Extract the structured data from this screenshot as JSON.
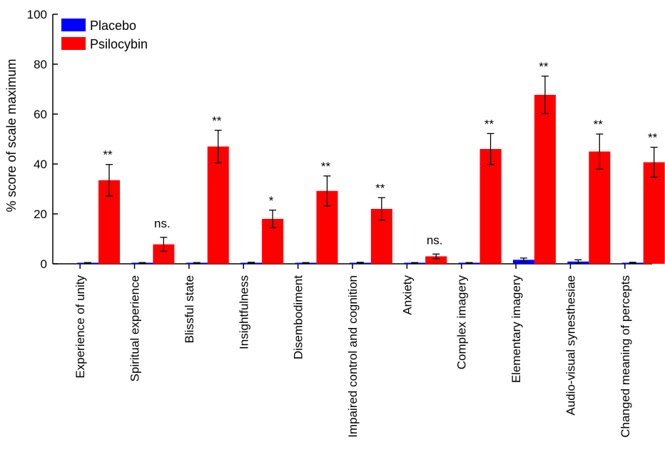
{
  "chart_data": {
    "type": "bar",
    "ylabel": "% score of scale maximum",
    "ylim": [
      0,
      100
    ],
    "yticks": [
      0,
      20,
      40,
      60,
      80,
      100
    ],
    "legend_position": "top-left",
    "categories": [
      "Experience of unity",
      "Spiritual experience",
      "Blissful state",
      "Insightfulness",
      "Disembodiment",
      "Impaired control and cognition",
      "Anxiety",
      "Complex imagery",
      "Elementary imagery",
      "Audio-visual synesthesiae",
      "Changed meaning of percepts"
    ],
    "series": [
      {
        "name": "Placebo",
        "color": "#0000ff",
        "values": [
          0.3,
          0.3,
          0.3,
          0.4,
          0.3,
          0.4,
          0.3,
          0.3,
          1.6,
          0.9,
          0.4
        ],
        "errors": [
          0.2,
          0.2,
          0.2,
          0.2,
          0.2,
          0.2,
          0.2,
          0.2,
          0.7,
          0.7,
          0.2
        ]
      },
      {
        "name": "Psilocybin",
        "color": "#ff0000",
        "values": [
          33.5,
          7.8,
          47.0,
          18.0,
          29.2,
          22.0,
          3.0,
          46.0,
          67.7,
          45.0,
          40.7
        ],
        "errors": [
          6.3,
          2.8,
          6.5,
          3.5,
          6.0,
          4.5,
          0.9,
          6.2,
          7.5,
          7.0,
          6.0
        ]
      }
    ],
    "significance": [
      "**",
      "ns.",
      "**",
      "*",
      "**",
      "**",
      "ns.",
      "**",
      "**",
      "**",
      "**"
    ]
  }
}
